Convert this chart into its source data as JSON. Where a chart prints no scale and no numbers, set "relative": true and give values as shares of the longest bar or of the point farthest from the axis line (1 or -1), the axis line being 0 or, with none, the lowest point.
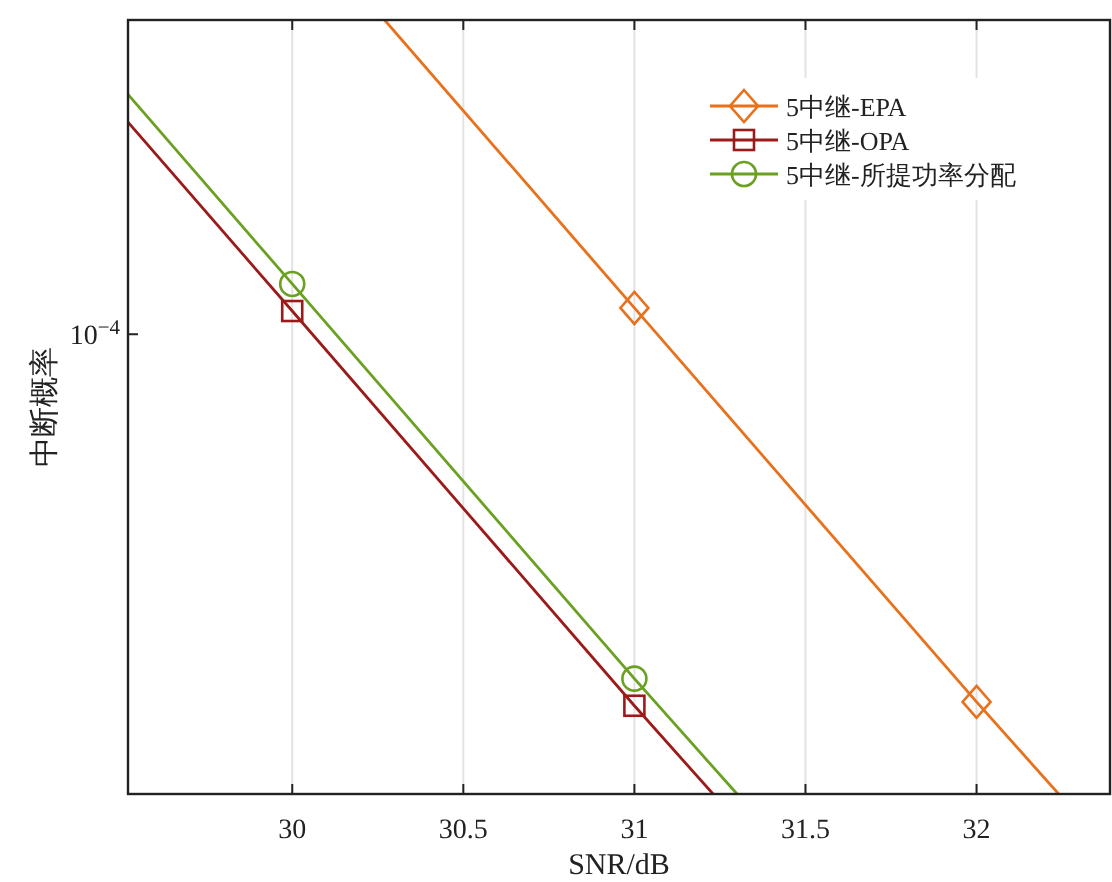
{
  "chart_data": {
    "type": "line",
    "xlabel": "SNR/dB",
    "ylabel": "中断概率",
    "relative": true,
    "xlim": [
      29.52,
      32.39
    ],
    "xticks": [
      30,
      {
        "value": 30.5,
        "label": "30.5"
      },
      31,
      {
        "value": 31.5,
        "label": "31.5"
      },
      32
    ],
    "annotations": [
      "10$^{−4}$"
    ],
    "grid": "x",
    "legend": "top right",
    "line_style": "solid",
    "series": [
      {
        "name": "5中继-EPA",
        "color": "#e8711c",
        "marker": "diamond",
        "x": [
          30.27,
          31,
          32,
          32.24
        ],
        "values": [
          1,
          0.628,
          0.119,
          0
        ]
      },
      {
        "name": "5中继-OPA",
        "color": "#9b1b1b",
        "marker": "square",
        "x": [
          29.52,
          30,
          31,
          31.23
        ],
        "values": [
          0.868,
          0.624,
          0.114,
          0
        ]
      },
      {
        "name": "5中继-所提功率分配",
        "color": "#6aa121",
        "marker": "circle",
        "x": [
          29.52,
          30,
          31,
          31.3
        ],
        "values": [
          0.904,
          0.659,
          0.149,
          0
        ]
      }
    ]
  }
}
